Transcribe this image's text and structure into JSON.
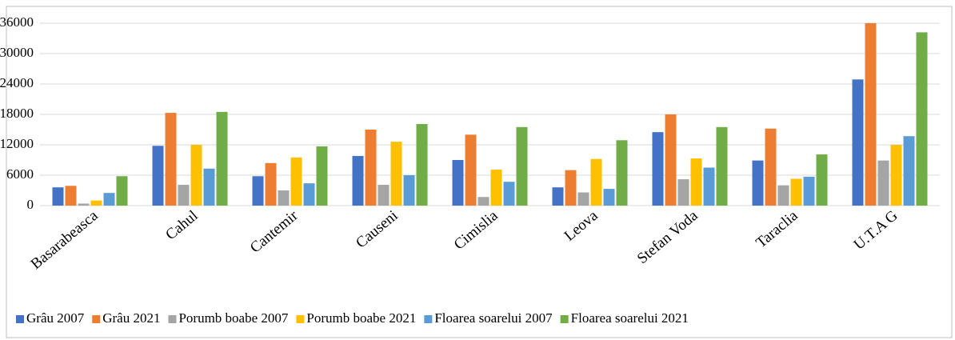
{
  "chart_data": {
    "type": "bar",
    "categories": [
      "Basarabeasca",
      "Cahul",
      "Cantemir",
      "Causeni",
      "Cimislia",
      "Leova",
      "Stefan Voda",
      "Taraclia",
      "U.T.A G"
    ],
    "series": [
      {
        "name": "Grâu 2007",
        "color": "#4472c4",
        "values": [
          3600,
          11800,
          5800,
          9800,
          9000,
          3600,
          14500,
          8900,
          24900
        ]
      },
      {
        "name": "Grâu 2021",
        "color": "#ed7d31",
        "values": [
          3900,
          18300,
          8400,
          15000,
          14000,
          7000,
          18000,
          15200,
          36000
        ]
      },
      {
        "name": "Porumb boabe 2007",
        "color": "#a5a5a5",
        "values": [
          400,
          4100,
          3000,
          4100,
          1700,
          2600,
          5200,
          4000,
          8900
        ]
      },
      {
        "name": "Porumb boabe 2021",
        "color": "#ffc000",
        "values": [
          1000,
          12000,
          9500,
          12600,
          7100,
          9200,
          9300,
          5300,
          12000
        ]
      },
      {
        "name": "Floarea soarelui 2007",
        "color": "#5b9bd5",
        "values": [
          2500,
          7300,
          4400,
          6000,
          4700,
          3300,
          7500,
          5700,
          13700
        ]
      },
      {
        "name": "Floarea soarelui 2021",
        "color": "#70ad47",
        "values": [
          5800,
          18500,
          11700,
          16100,
          15500,
          12900,
          15500,
          10100,
          34200
        ]
      }
    ],
    "ylim": [
      0,
      36000
    ],
    "yticks": [
      0,
      6000,
      12000,
      18000,
      24000,
      30000,
      36000
    ],
    "grid": true,
    "legend": "bottom"
  }
}
